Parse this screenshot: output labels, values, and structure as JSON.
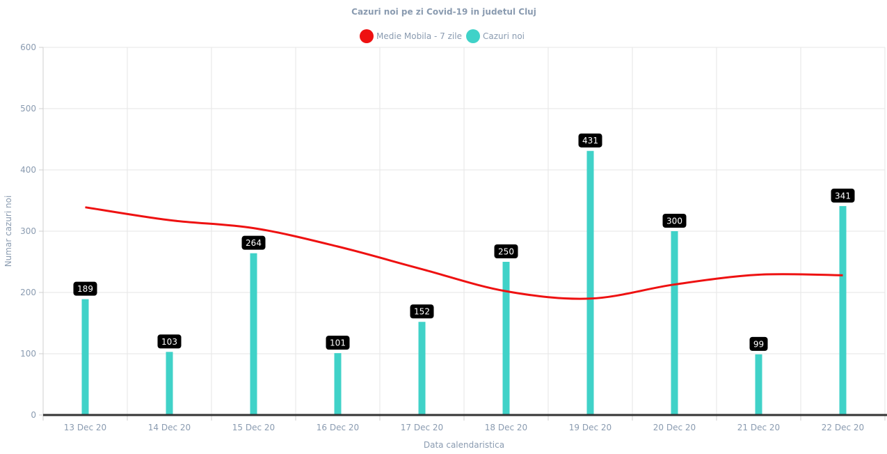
{
  "chart_data": {
    "type": "bar",
    "title": "Cazuri noi pe zi Covid-19 in judetul Cluj",
    "xlabel": "Data calendaristica",
    "ylabel": "Numar cazuri noi",
    "categories": [
      "13 Dec 20",
      "14 Dec 20",
      "15 Dec 20",
      "16 Dec 20",
      "17 Dec 20",
      "18 Dec 20",
      "19 Dec 20",
      "20 Dec 20",
      "21 Dec 20",
      "22 Dec 20"
    ],
    "ylim": [
      0,
      600
    ],
    "yticks": [
      0,
      100,
      200,
      300,
      400,
      500,
      600
    ],
    "grid": true,
    "legend_position": "top-center",
    "series": [
      {
        "name": "Medie Mobila - 7 zile",
        "type": "line",
        "color": "#ee1111",
        "values": [
          339,
          318,
          305,
          275,
          238,
          202,
          190,
          213,
          229,
          228
        ]
      },
      {
        "name": "Cazuri noi",
        "type": "bar",
        "color": "#40d2c8",
        "values": [
          189,
          103,
          264,
          101,
          152,
          250,
          431,
          300,
          99,
          341
        ],
        "data_labels": [
          "189",
          "103",
          "264",
          "101",
          "152",
          "250",
          "431",
          "300",
          "99",
          "341"
        ]
      }
    ]
  }
}
